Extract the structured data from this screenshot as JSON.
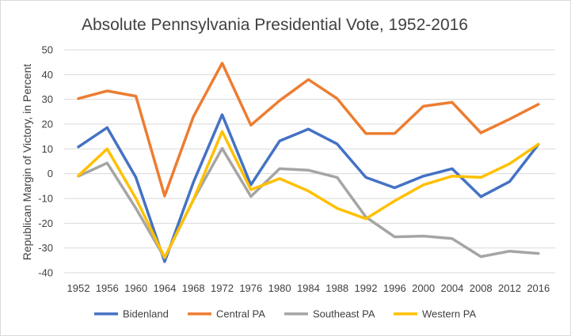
{
  "chart_data": {
    "type": "line",
    "title": "Absolute Pennsylvania Presidential Vote, 1952-2016",
    "xlabel": "",
    "ylabel": "Republican Margin of Victory, in Percent",
    "ylim": [
      -40,
      50
    ],
    "yticks": [
      -40,
      -30,
      -20,
      -10,
      0,
      10,
      20,
      30,
      40,
      50
    ],
    "categories": [
      "1952",
      "1956",
      "1960",
      "1964",
      "1968",
      "1972",
      "1976",
      "1980",
      "1984",
      "1988",
      "1992",
      "1996",
      "2000",
      "2004",
      "2008",
      "2012",
      "2016"
    ],
    "grid": true,
    "legend_position": "bottom",
    "series": [
      {
        "name": "Bidenland",
        "color": "#4472c4",
        "values": [
          10.8,
          18.6,
          -1.5,
          -35.5,
          -3.5,
          23.8,
          -4.5,
          13.2,
          18.0,
          12.0,
          -1.5,
          -5.7,
          -1.0,
          2.0,
          -9.3,
          -3.2,
          11.8
        ]
      },
      {
        "name": "Central PA",
        "color": "#ed7d31",
        "values": [
          30.3,
          33.4,
          31.3,
          -9.0,
          23.0,
          44.6,
          19.6,
          29.5,
          38.0,
          30.3,
          16.2,
          16.2,
          27.2,
          28.8,
          16.5,
          22.0,
          28.0
        ]
      },
      {
        "name": "Southeast PA",
        "color": "#a5a5a5",
        "values": [
          -1.0,
          4.3,
          -14.0,
          -34.0,
          -10.5,
          10.2,
          -9.2,
          2.0,
          1.4,
          -1.5,
          -17.5,
          -25.5,
          -25.2,
          -26.2,
          -33.5,
          -31.3,
          -32.2
        ]
      },
      {
        "name": "Western PA",
        "color": "#ffc000",
        "values": [
          -0.8,
          10.0,
          -10.0,
          -33.8,
          -10.5,
          17.0,
          -6.5,
          -2.0,
          -7.0,
          -14.0,
          -18.2,
          -11.0,
          -4.5,
          -1.0,
          -1.5,
          4.0,
          11.9
        ]
      }
    ]
  }
}
